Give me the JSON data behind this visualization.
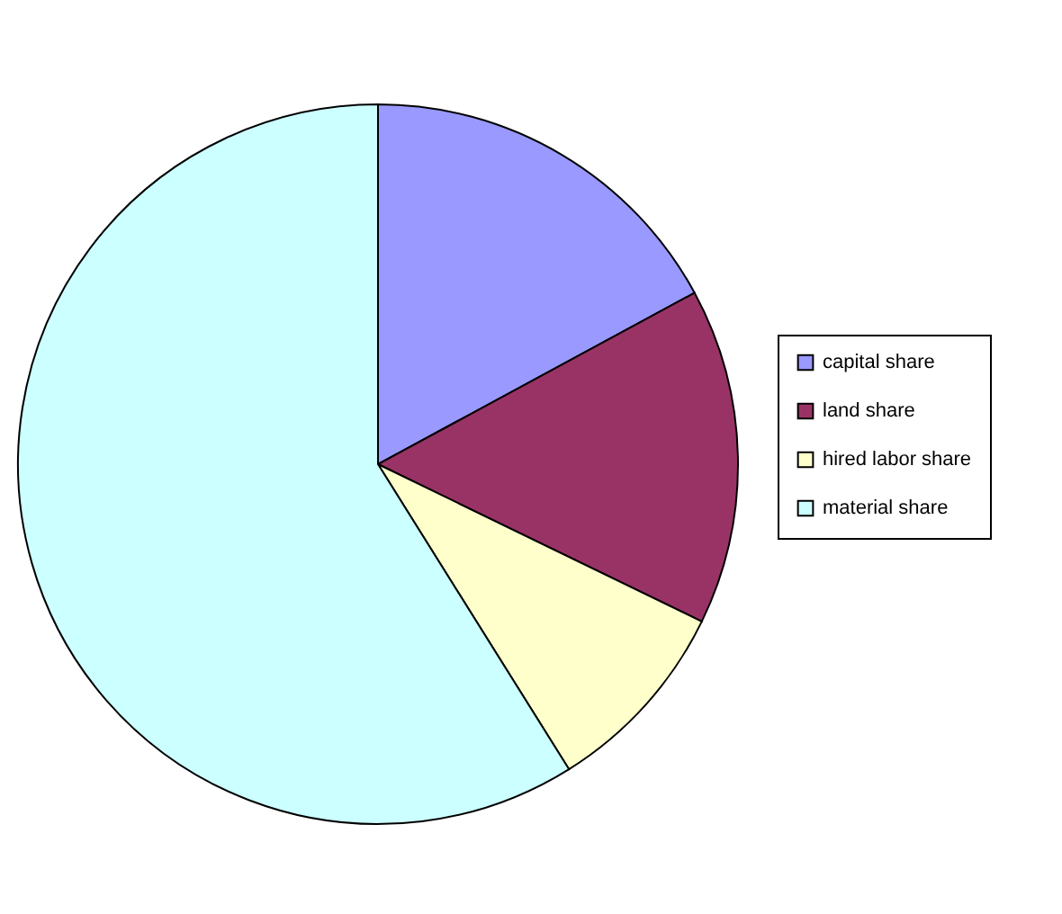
{
  "chart_data": {
    "type": "pie",
    "categories": [
      "capital share",
      "land share",
      "hired labor share",
      "material share"
    ],
    "values": [
      17.1,
      15.1,
      8.9,
      58.9
    ],
    "colors": [
      "#9999ff",
      "#993366",
      "#ffffcc",
      "#ccffff"
    ],
    "legend": "right"
  }
}
